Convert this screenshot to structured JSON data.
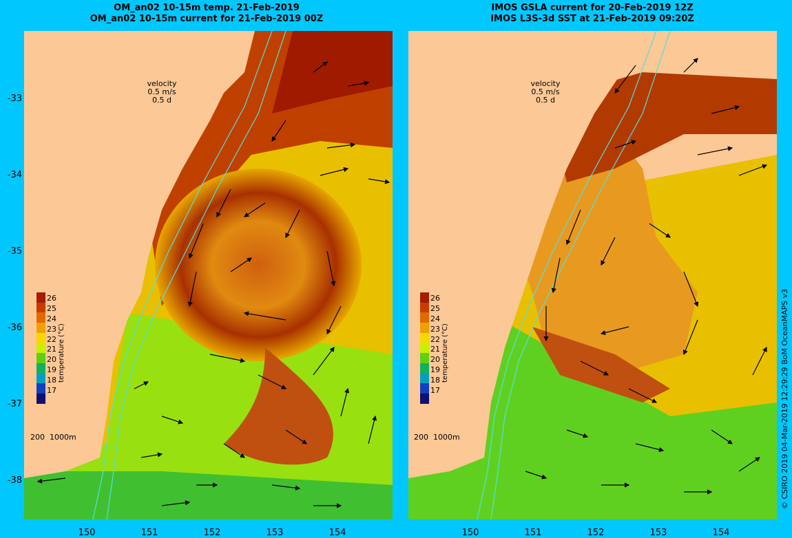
{
  "left_panel": {
    "title_line1": "OM_an02 10-15m temp. 21-Feb-2019",
    "title_line2": "OM_an02 10-15m current for 21-Feb-2019 00Z",
    "velocity_label": "velocity",
    "velocity_speed": "0.5 m/s",
    "velocity_time": "0.5 d",
    "depth_label_200": "200",
    "depth_label_1000": "1000m"
  },
  "right_panel": {
    "title_line1": "IMOS GSLA current for 20-Feb-2019 12Z",
    "title_line2": "IMOS L3S-3d SST at 21-Feb-2019 09:20Z",
    "velocity_label": "velocity",
    "velocity_speed": "0.5 m/s",
    "velocity_time": "0.5 d",
    "depth_label_200": "200",
    "depth_label_1000": "1000m"
  },
  "colorbar": {
    "title": "temperature (°C)",
    "ticks": [
      "26",
      "25",
      "24",
      "23",
      "22",
      "21",
      "20",
      "19",
      "18",
      "17"
    ],
    "colors": [
      "#a51c00",
      "#c83c00",
      "#e06a00",
      "#f0a000",
      "#f5d800",
      "#c8f000",
      "#60d010",
      "#10b060",
      "#00a0c0",
      "#1040c0",
      "#101070"
    ]
  },
  "y_axis": [
    "-33",
    "-34",
    "-35",
    "-36",
    "-37",
    "-38"
  ],
  "x_axis": [
    "150",
    "151",
    "152",
    "153",
    "154"
  ],
  "credit": "© CSIRO 2019   04-Mar-2019 12:29:29 BoM OceanMAPS v3",
  "colors": {
    "background": "#00c8ff",
    "land": "#fcc896",
    "warm_core": "#a82a00",
    "orange": "#e07a10",
    "yellow": "#f0c800",
    "green": "#40c020"
  }
}
